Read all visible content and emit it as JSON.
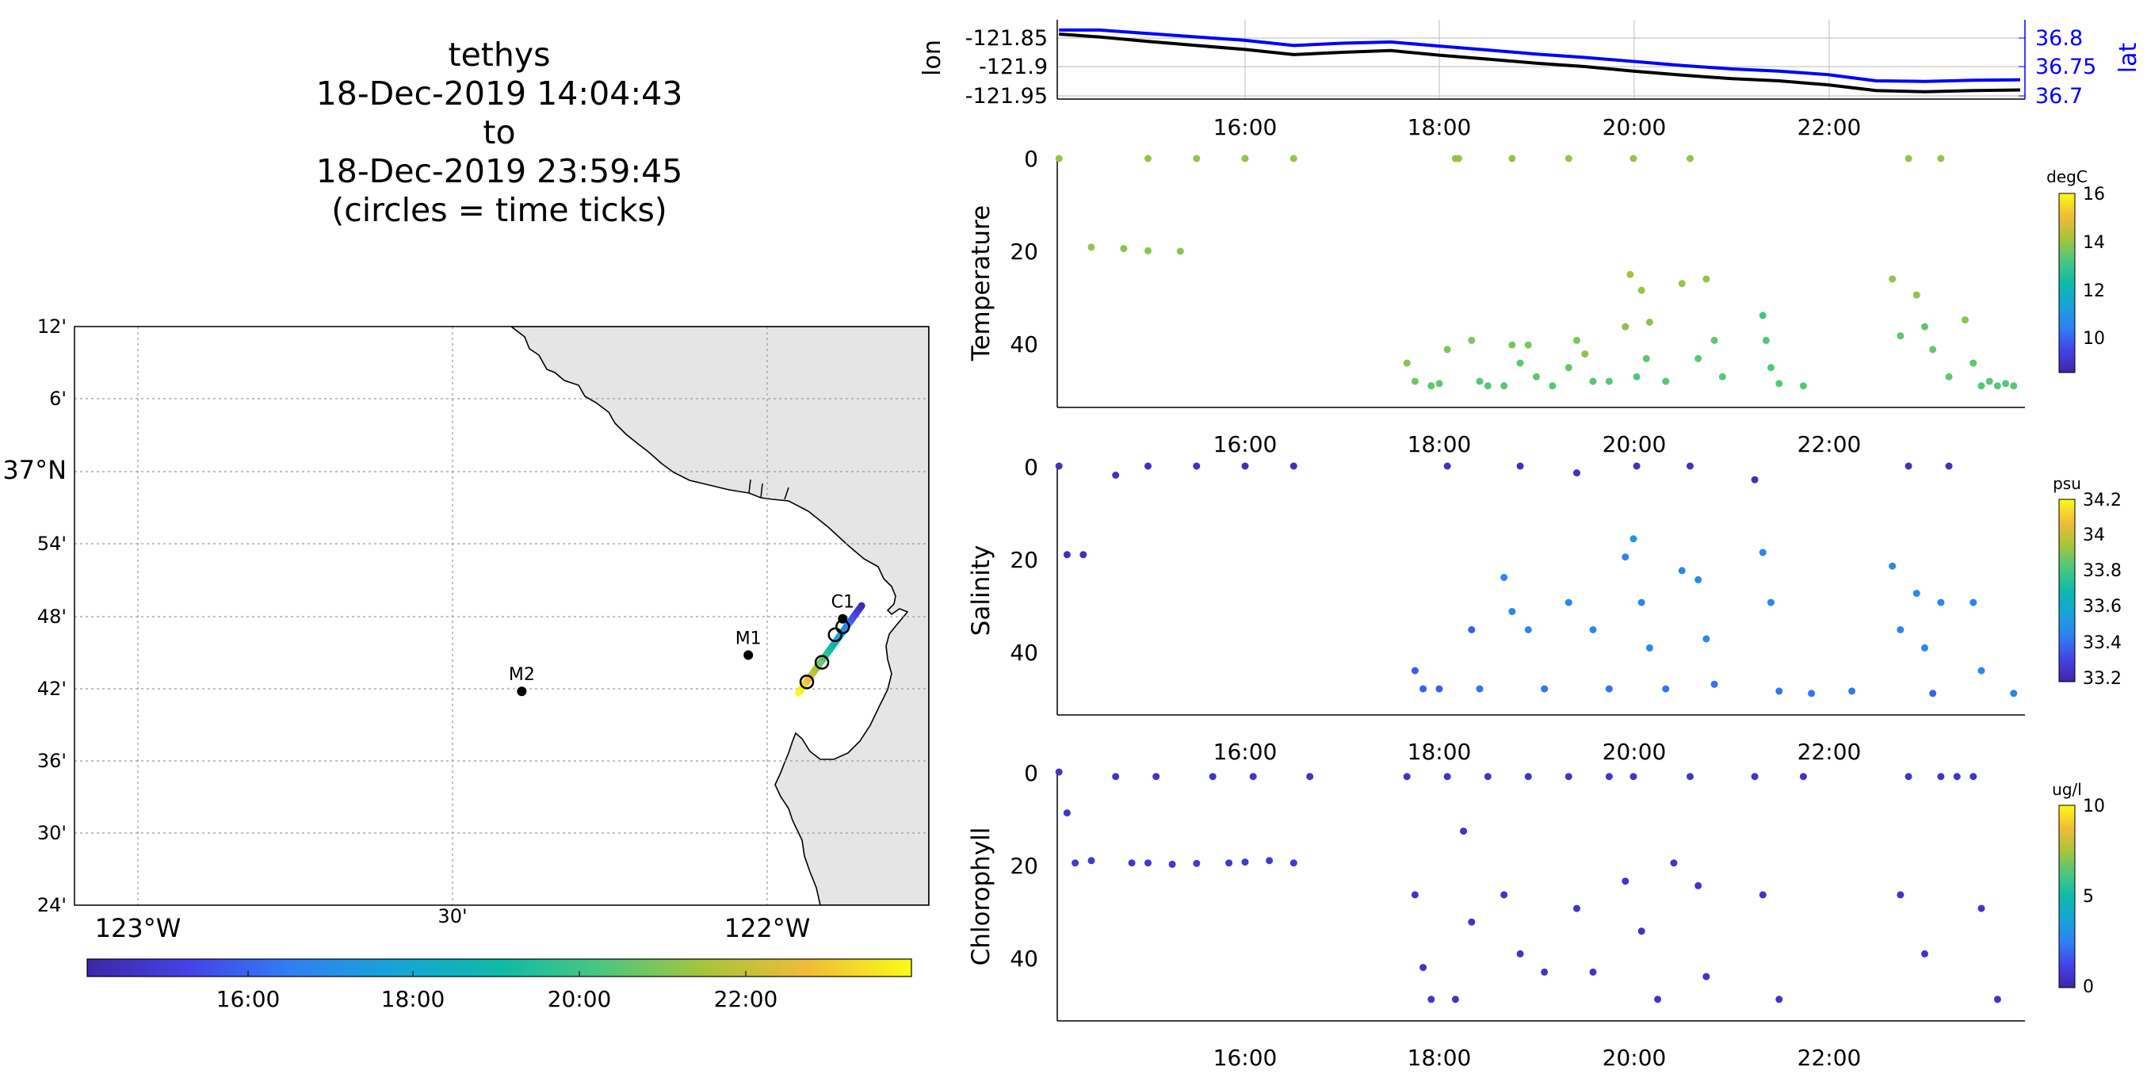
{
  "title": {
    "vehicle": "tethys",
    "start": "18-Dec-2019 14:04:43",
    "to": "to",
    "end": "18-Dec-2019 23:59:45",
    "note": "(circles = time ticks)"
  },
  "colors": {
    "parula_stops": [
      "#3e26a8",
      "#4443e8",
      "#2f80f4",
      "#16a4d8",
      "#0ebaa8",
      "#4bc77f",
      "#a8c439",
      "#f1bc38",
      "#f9fb15"
    ],
    "lon_line": "#000000",
    "lat_line": "#0000ff",
    "land": "#e5e5e5",
    "grid": "#b0b0b0"
  },
  "map": {
    "lat_ticks": [
      "12'",
      "6'",
      "37°N",
      "54'",
      "48'",
      "42'",
      "36'",
      "30'",
      "24'"
    ],
    "lon_ticks": [
      "123°W",
      "30'",
      "122°W"
    ],
    "stations": [
      {
        "name": "M2",
        "lon": -122.39,
        "lat": 36.697
      },
      {
        "name": "M1",
        "lon": -122.03,
        "lat": 36.747
      },
      {
        "name": "C1",
        "lon": -121.88,
        "lat": 36.797
      }
    ],
    "track_start": {
      "lon": -121.85,
      "lat": 36.815
    },
    "track_end": {
      "lon": -121.95,
      "lat": 36.695
    },
    "time_tick_circles": [
      {
        "lon": -121.88,
        "lat": 36.786
      },
      {
        "lon": -121.892,
        "lat": 36.775
      },
      {
        "lon": -121.913,
        "lat": 36.737
      },
      {
        "lon": -121.937,
        "lat": 36.71
      }
    ]
  },
  "time_colorbar": {
    "ticks": [
      "16:00",
      "18:00",
      "20:00",
      "22:00"
    ]
  },
  "chart_data": [
    {
      "type": "line",
      "panel": "position",
      "xlim": [
        "14:04:43",
        "23:59:45"
      ],
      "x_ticks": [
        "16:00",
        "18:00",
        "20:00",
        "22:00"
      ],
      "ylabel": "lon",
      "ylabel_right": "lat",
      "y_ticks_left": [
        "-121.85",
        "-121.9",
        "-121.95"
      ],
      "y_ticks_right": [
        "36.8",
        "36.75",
        "36.7"
      ],
      "ylim_left": [
        -121.955,
        -121.835
      ],
      "ylim_right": [
        36.687,
        36.82
      ],
      "series": [
        {
          "name": "lon",
          "axis": "left",
          "x": [
            "14:05",
            "14:30",
            "15:00",
            "15:30",
            "16:00",
            "16:30",
            "17:00",
            "17:30",
            "18:00",
            "18:30",
            "19:00",
            "19:30",
            "20:00",
            "20:30",
            "21:00",
            "21:30",
            "22:00",
            "22:30",
            "23:00",
            "23:30",
            "23:59"
          ],
          "values": [
            -121.843,
            -121.848,
            -121.856,
            -121.863,
            -121.87,
            -121.879,
            -121.875,
            -121.872,
            -121.88,
            -121.887,
            -121.894,
            -121.9,
            -121.908,
            -121.915,
            -121.921,
            -121.925,
            -121.932,
            -121.942,
            -121.944,
            -121.942,
            -121.941
          ]
        },
        {
          "name": "lat",
          "axis": "right",
          "x": [
            "14:05",
            "14:30",
            "15:00",
            "15:30",
            "16:00",
            "16:30",
            "17:00",
            "17:30",
            "18:00",
            "18:30",
            "19:00",
            "19:30",
            "20:00",
            "20:30",
            "21:00",
            "21:30",
            "22:00",
            "22:30",
            "23:00",
            "23:30",
            "23:59"
          ],
          "values": [
            36.814,
            36.814,
            36.808,
            36.802,
            36.796,
            36.787,
            36.791,
            36.793,
            36.786,
            36.779,
            36.772,
            36.766,
            36.759,
            36.752,
            36.746,
            36.742,
            36.736,
            36.725,
            36.724,
            36.726,
            36.727
          ]
        }
      ]
    },
    {
      "type": "scatter",
      "panel": "temperature",
      "ylabel": "Temperature",
      "colorbar": {
        "unit": "degC",
        "ticks": [
          "16",
          "14",
          "12",
          "10"
        ],
        "range": [
          8.5,
          16
        ]
      },
      "xlim": [
        "14:04:43",
        "23:59:45"
      ],
      "x_ticks": [
        "16:00",
        "18:00",
        "20:00",
        "22:00"
      ],
      "ylim": [
        0,
        53
      ],
      "y_ticks": [
        "0",
        "20",
        "40"
      ],
      "points": [
        [
          "14:05",
          0,
          13.9
        ],
        [
          "14:25",
          19.5,
          13.9
        ],
        [
          "14:45",
          19.8,
          13.8
        ],
        [
          "15:00",
          20.3,
          13.8
        ],
        [
          "15:20",
          20.4,
          13.8
        ],
        [
          "15:00",
          0,
          13.9
        ],
        [
          "15:30",
          0,
          13.9
        ],
        [
          "16:00",
          0,
          13.9
        ],
        [
          "16:30",
          0,
          13.9
        ],
        [
          "17:40",
          45,
          13.8
        ],
        [
          "17:45",
          49,
          13.6
        ],
        [
          "17:55",
          50,
          13.4
        ],
        [
          "18:00",
          49.5,
          13.4
        ],
        [
          "18:05",
          42,
          13.7
        ],
        [
          "18:10",
          0,
          13.9
        ],
        [
          "18:12",
          0,
          13.9
        ],
        [
          "18:20",
          40,
          13.7
        ],
        [
          "18:25",
          49,
          13.3
        ],
        [
          "18:30",
          50,
          13.3
        ],
        [
          "18:40",
          50,
          13.3
        ],
        [
          "18:45",
          0,
          13.9
        ],
        [
          "18:45",
          41,
          13.7
        ],
        [
          "18:50",
          45,
          13.4
        ],
        [
          "18:55",
          41,
          13.7
        ],
        [
          "19:00",
          48,
          13.4
        ],
        [
          "19:10",
          50,
          13.3
        ],
        [
          "19:20",
          0,
          13.9
        ],
        [
          "19:20",
          46,
          13.4
        ],
        [
          "19:25",
          40,
          13.7
        ],
        [
          "19:30",
          43,
          13.8
        ],
        [
          "19:35",
          49,
          13.3
        ],
        [
          "19:45",
          49,
          13.3
        ],
        [
          "19:55",
          37,
          13.8
        ],
        [
          "19:58",
          25.5,
          14.1
        ],
        [
          "20:00",
          0,
          13.9
        ],
        [
          "20:02",
          48,
          13.3
        ],
        [
          "20:05",
          29,
          13.9
        ],
        [
          "20:08",
          44,
          13.4
        ],
        [
          "20:10",
          36,
          13.8
        ],
        [
          "20:20",
          49,
          13.3
        ],
        [
          "20:30",
          27.5,
          13.9
        ],
        [
          "20:35",
          0,
          13.9
        ],
        [
          "20:40",
          44,
          13.4
        ],
        [
          "20:45",
          26.5,
          13.9
        ],
        [
          "20:50",
          40,
          13.4
        ],
        [
          "20:55",
          48,
          13.3
        ],
        [
          "21:20",
          34.5,
          13.1
        ],
        [
          "21:22",
          40,
          13.2
        ],
        [
          "21:25",
          46,
          13.3
        ],
        [
          "21:30",
          49.5,
          13.3
        ],
        [
          "21:45",
          50,
          13.3
        ],
        [
          "22:40",
          26.5,
          13.9
        ],
        [
          "22:45",
          39,
          13.4
        ],
        [
          "22:50",
          0,
          13.9
        ],
        [
          "22:55",
          30,
          13.9
        ],
        [
          "23:00",
          37,
          13.4
        ],
        [
          "23:05",
          42,
          13.4
        ],
        [
          "23:10",
          0,
          13.9
        ],
        [
          "23:15",
          48,
          13.4
        ],
        [
          "23:25",
          35.5,
          13.8
        ],
        [
          "23:30",
          45,
          13.4
        ],
        [
          "23:35",
          50,
          13.3
        ],
        [
          "23:40",
          49,
          13.3
        ],
        [
          "23:45",
          50,
          13.3
        ],
        [
          "23:50",
          49.5,
          13.3
        ],
        [
          "23:55",
          50,
          13.3
        ]
      ]
    },
    {
      "type": "scatter",
      "panel": "salinity",
      "ylabel": "Salinity",
      "colorbar": {
        "unit": "psu",
        "ticks": [
          "34.2",
          "34",
          "33.8",
          "33.6",
          "33.4",
          "33.2"
        ],
        "range": [
          33.15,
          34.25
        ]
      },
      "xlim": [
        "14:04:43",
        "23:59:45"
      ],
      "x_ticks": [
        "16:00",
        "18:00",
        "20:00",
        "22:00"
      ],
      "ylim": [
        0,
        53
      ],
      "y_ticks": [
        "0",
        "20",
        "40"
      ],
      "points": [
        [
          "14:05",
          0,
          33.2
        ],
        [
          "14:10",
          19.5,
          33.2
        ],
        [
          "14:20",
          19.5,
          33.2
        ],
        [
          "14:40",
          2,
          33.2
        ],
        [
          "15:00",
          0,
          33.2
        ],
        [
          "15:30",
          0,
          33.2
        ],
        [
          "16:00",
          0,
          33.2
        ],
        [
          "16:30",
          0,
          33.2
        ],
        [
          "17:45",
          45,
          33.35
        ],
        [
          "17:50",
          49,
          33.35
        ],
        [
          "18:00",
          49,
          33.35
        ],
        [
          "18:05",
          0,
          33.2
        ],
        [
          "18:20",
          36,
          33.35
        ],
        [
          "18:25",
          49,
          33.4
        ],
        [
          "18:40",
          24.5,
          33.45
        ],
        [
          "18:45",
          32,
          33.45
        ],
        [
          "18:50",
          0,
          33.2
        ],
        [
          "18:55",
          36,
          33.45
        ],
        [
          "19:05",
          49,
          33.4
        ],
        [
          "19:20",
          30,
          33.45
        ],
        [
          "19:25",
          1.5,
          33.2
        ],
        [
          "19:35",
          36,
          33.45
        ],
        [
          "19:45",
          49,
          33.4
        ],
        [
          "19:55",
          20,
          33.45
        ],
        [
          "20:00",
          16,
          33.5
        ],
        [
          "20:02",
          0,
          33.2
        ],
        [
          "20:05",
          30,
          33.45
        ],
        [
          "20:10",
          40,
          33.45
        ],
        [
          "20:20",
          49,
          33.4
        ],
        [
          "20:30",
          23,
          33.45
        ],
        [
          "20:35",
          0,
          33.2
        ],
        [
          "20:40",
          25,
          33.45
        ],
        [
          "20:45",
          38,
          33.45
        ],
        [
          "20:50",
          48,
          33.4
        ],
        [
          "21:15",
          3,
          33.2
        ],
        [
          "21:20",
          19,
          33.45
        ],
        [
          "21:25",
          30,
          33.45
        ],
        [
          "21:30",
          49.5,
          33.4
        ],
        [
          "21:50",
          50,
          33.4
        ],
        [
          "22:15",
          49.5,
          33.4
        ],
        [
          "22:40",
          22,
          33.45
        ],
        [
          "22:45",
          36,
          33.45
        ],
        [
          "22:50",
          0,
          33.2
        ],
        [
          "22:55",
          28,
          33.45
        ],
        [
          "23:00",
          40,
          33.45
        ],
        [
          "23:05",
          50,
          33.35
        ],
        [
          "23:10",
          30,
          33.45
        ],
        [
          "23:15",
          0,
          33.2
        ],
        [
          "23:30",
          30,
          33.45
        ],
        [
          "23:35",
          45,
          33.45
        ],
        [
          "23:55",
          50,
          33.45
        ]
      ]
    },
    {
      "type": "scatter",
      "panel": "chlorophyll",
      "ylabel": "Chlorophyll",
      "colorbar": {
        "unit": "ug/l",
        "ticks": [
          "10",
          "5",
          "0"
        ],
        "range": [
          0,
          10
        ]
      },
      "xlim": [
        "14:04:43",
        "23:59:45"
      ],
      "x_ticks": [
        "16:00",
        "18:00",
        "20:00",
        "22:00"
      ],
      "ylim": [
        0,
        53
      ],
      "y_ticks": [
        "0",
        "20",
        "40"
      ],
      "points": [
        [
          "14:05",
          0,
          0.6
        ],
        [
          "14:10",
          9,
          0.6
        ],
        [
          "14:15",
          20,
          0.8
        ],
        [
          "14:25",
          19.5,
          0.8
        ],
        [
          "14:40",
          1,
          0.6
        ],
        [
          "14:50",
          20,
          0.8
        ],
        [
          "15:00",
          20,
          0.8
        ],
        [
          "15:05",
          1,
          0.6
        ],
        [
          "15:15",
          20.3,
          0.8
        ],
        [
          "15:30",
          20.1,
          0.8
        ],
        [
          "15:40",
          1,
          0.6
        ],
        [
          "15:50",
          20,
          0.8
        ],
        [
          "16:00",
          19.8,
          0.8
        ],
        [
          "16:05",
          1,
          0.6
        ],
        [
          "16:15",
          19.5,
          0.8
        ],
        [
          "16:30",
          20,
          0.8
        ],
        [
          "16:40",
          1,
          0.6
        ],
        [
          "17:40",
          1,
          0.6
        ],
        [
          "17:45",
          27,
          0.6
        ],
        [
          "17:50",
          43,
          0.6
        ],
        [
          "17:55",
          50,
          0.6
        ],
        [
          "18:05",
          1,
          0.6
        ],
        [
          "18:10",
          50,
          0.6
        ],
        [
          "18:15",
          13,
          0.6
        ],
        [
          "18:20",
          33,
          0.6
        ],
        [
          "18:30",
          1,
          0.6
        ],
        [
          "18:40",
          27,
          0.6
        ],
        [
          "18:50",
          40,
          0.6
        ],
        [
          "18:55",
          1,
          0.6
        ],
        [
          "19:05",
          44,
          0.6
        ],
        [
          "19:20",
          1,
          0.6
        ],
        [
          "19:25",
          30,
          0.6
        ],
        [
          "19:35",
          44,
          0.6
        ],
        [
          "19:45",
          1,
          0.6
        ],
        [
          "19:55",
          24,
          0.6
        ],
        [
          "20:00",
          1,
          0.6
        ],
        [
          "20:05",
          35,
          0.6
        ],
        [
          "20:15",
          50,
          0.6
        ],
        [
          "20:25",
          20,
          0.6
        ],
        [
          "20:35",
          1,
          0.6
        ],
        [
          "20:40",
          25,
          0.6
        ],
        [
          "20:45",
          45,
          0.6
        ],
        [
          "21:15",
          1,
          0.6
        ],
        [
          "21:20",
          27,
          0.6
        ],
        [
          "21:30",
          50,
          0.6
        ],
        [
          "21:45",
          1,
          0.6
        ],
        [
          "22:45",
          27,
          0.6
        ],
        [
          "22:50",
          1,
          0.6
        ],
        [
          "23:00",
          40,
          0.6
        ],
        [
          "23:10",
          1,
          0.6
        ],
        [
          "23:20",
          1,
          0.6
        ],
        [
          "23:30",
          1,
          0.6
        ],
        [
          "23:35",
          30,
          0.6
        ],
        [
          "23:45",
          50,
          0.6
        ]
      ]
    }
  ]
}
